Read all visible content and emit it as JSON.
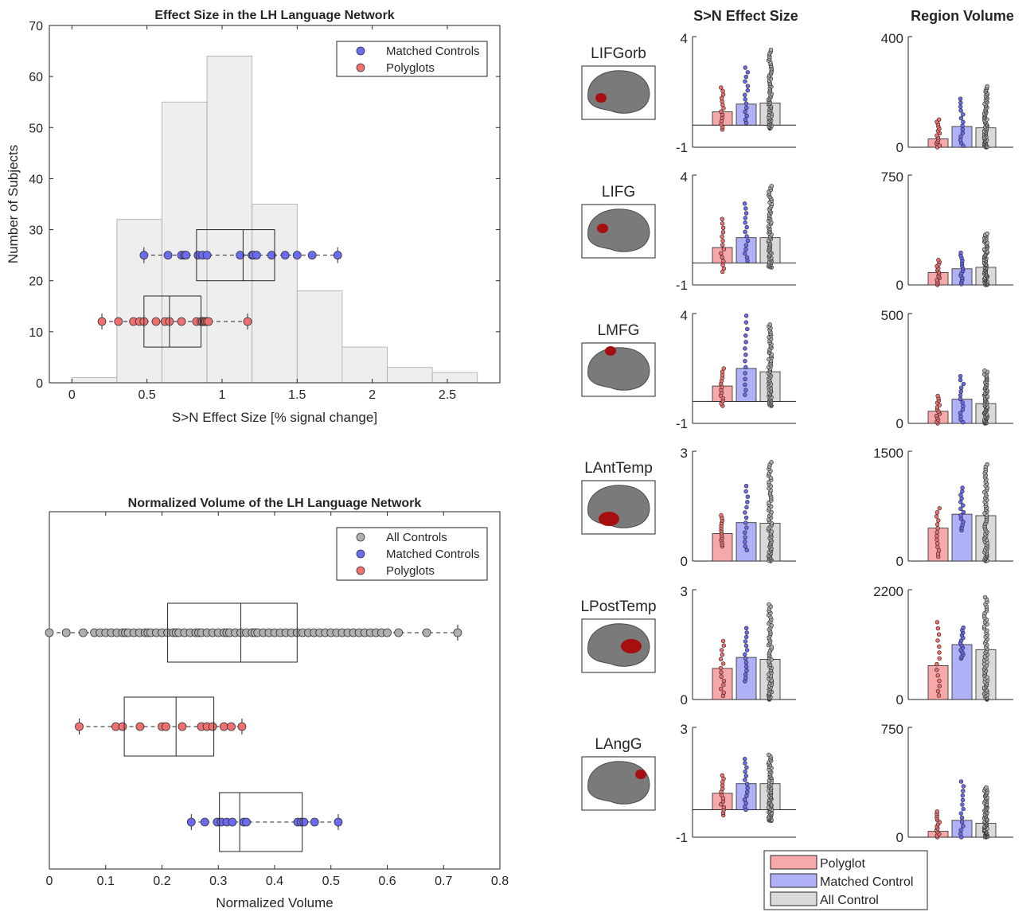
{
  "chart_data": [
    {
      "type": "histogram",
      "title": "Effect Size in the LH Language Network",
      "xlabel": "S>N Effect Size [% signal change]",
      "ylabel": "Number of Subjects",
      "xlim": [
        -0.15,
        2.85
      ],
      "ylim": [
        0,
        70
      ],
      "xticks": [
        0,
        0.5,
        1,
        1.5,
        2,
        2.5
      ],
      "xtick_labels": [
        "0",
        "0.5",
        "1",
        "1.5",
        "2",
        "2.5"
      ],
      "yticks": [
        0,
        10,
        20,
        30,
        40,
        50,
        60,
        70
      ],
      "ytick_labels": [
        "0",
        "10",
        "20",
        "30",
        "40",
        "50",
        "60",
        "70"
      ],
      "legend_position": "top-right",
      "legend": [
        {
          "label": "Matched Controls",
          "color": "#6b6bf0"
        },
        {
          "label": "Polyglots",
          "color": "#f07070"
        }
      ],
      "bins": [
        {
          "x0": 0,
          "x1": 0.3,
          "count": 1
        },
        {
          "x0": 0.3,
          "x1": 0.6,
          "count": 32
        },
        {
          "x0": 0.6,
          "x1": 0.9,
          "count": 55
        },
        {
          "x0": 0.9,
          "x1": 1.2,
          "count": 64
        },
        {
          "x0": 1.2,
          "x1": 1.5,
          "count": 35
        },
        {
          "x0": 1.5,
          "x1": 1.8,
          "count": 18
        },
        {
          "x0": 1.8,
          "x1": 2.1,
          "count": 7
        },
        {
          "x0": 2.1,
          "x1": 2.4,
          "count": 3
        },
        {
          "x0": 2.4,
          "x1": 2.7,
          "count": 2
        }
      ],
      "series": [
        {
          "name": "Matched Controls",
          "color": "#6b6bf0",
          "y": 25,
          "points": [
            0.48,
            0.64,
            0.73,
            0.75,
            0.76,
            0.84,
            0.87,
            0.9,
            1.12,
            1.2,
            1.21,
            1.23,
            1.33,
            1.42,
            1.5,
            1.6,
            1.77
          ],
          "box": {
            "whisker_low": 0.48,
            "q1": 0.83,
            "median": 1.14,
            "q3": 1.35,
            "whisker_high": 1.77
          }
        },
        {
          "name": "Polyglots",
          "color": "#f07070",
          "y": 12,
          "points": [
            0.2,
            0.31,
            0.41,
            0.45,
            0.48,
            0.56,
            0.62,
            0.65,
            0.73,
            0.83,
            0.86,
            0.87,
            0.88,
            0.89,
            0.9,
            0.91,
            1.17
          ],
          "box": {
            "whisker_low": 0.2,
            "q1": 0.48,
            "median": 0.65,
            "q3": 0.86,
            "whisker_high": 1.17
          }
        }
      ]
    },
    {
      "type": "boxplot",
      "title": "Normalized Volume of the LH Language Network",
      "xlabel": "Normalized Volume",
      "xlim": [
        0,
        0.8
      ],
      "xticks": [
        0,
        0.1,
        0.2,
        0.3,
        0.4,
        0.5,
        0.6,
        0.7,
        0.8
      ],
      "xtick_labels": [
        "0",
        "0.1",
        "0.2",
        "0.3",
        "0.4",
        "0.5",
        "0.6",
        "0.7",
        "0.8"
      ],
      "legend_position": "top-right",
      "legend": [
        {
          "label": "All Controls",
          "color": "#b0b0b0"
        },
        {
          "label": "Matched Controls",
          "color": "#6b6bf0"
        },
        {
          "label": "Polyglots",
          "color": "#f07070"
        }
      ],
      "series": [
        {
          "name": "All Controls",
          "color": "#b0b0b0",
          "row": 1,
          "points": [
            0.0,
            0.03,
            0.06,
            0.08,
            0.09,
            0.1,
            0.11,
            0.12,
            0.13,
            0.135,
            0.14,
            0.15,
            0.16,
            0.17,
            0.175,
            0.18,
            0.19,
            0.2,
            0.21,
            0.22,
            0.225,
            0.23,
            0.24,
            0.25,
            0.26,
            0.265,
            0.27,
            0.28,
            0.29,
            0.3,
            0.31,
            0.315,
            0.32,
            0.33,
            0.34,
            0.35,
            0.36,
            0.365,
            0.37,
            0.38,
            0.39,
            0.4,
            0.41,
            0.42,
            0.43,
            0.44,
            0.45,
            0.46,
            0.47,
            0.48,
            0.49,
            0.5,
            0.51,
            0.52,
            0.53,
            0.54,
            0.55,
            0.56,
            0.57,
            0.58,
            0.59,
            0.6,
            0.62,
            0.67,
            0.725
          ],
          "box": {
            "whisker_low": 0.0,
            "q1": 0.21,
            "median": 0.34,
            "q3": 0.44,
            "whisker_high": 0.725
          }
        },
        {
          "name": "Polyglots",
          "color": "#f07070",
          "row": 2,
          "points": [
            0.053,
            0.118,
            0.13,
            0.161,
            0.2,
            0.207,
            0.236,
            0.27,
            0.28,
            0.29,
            0.31,
            0.323,
            0.342
          ],
          "box": {
            "whisker_low": 0.053,
            "q1": 0.133,
            "median": 0.225,
            "q3": 0.292,
            "whisker_high": 0.342
          }
        },
        {
          "name": "Matched Controls",
          "color": "#6b6bf0",
          "row": 3,
          "points": [
            0.252,
            0.276,
            0.298,
            0.305,
            0.315,
            0.325,
            0.345,
            0.35,
            0.441,
            0.447,
            0.452,
            0.471,
            0.513
          ],
          "box": {
            "whisker_low": 0.252,
            "q1": 0.302,
            "median": 0.338,
            "q3": 0.449,
            "whisker_high": 0.513
          }
        }
      ]
    },
    {
      "type": "bar_grid",
      "column_titles": [
        "S>N Effect Size",
        "Region Volume"
      ],
      "groups": [
        "Polyglot",
        "Matched Control",
        "All Control"
      ],
      "group_colors": [
        "#f7a8a8",
        "#b0b0f7",
        "#d9d9d9"
      ],
      "dot_colors": [
        "#f07070",
        "#6b6bf0",
        "#b0b0b0"
      ],
      "legend": [
        {
          "label": "Polyglot",
          "color": "#f7a8a8"
        },
        {
          "label": "Matched Control",
          "color": "#b0b0f7"
        },
        {
          "label": "All Control",
          "color": "#d9d9d9"
        }
      ],
      "rows": [
        {
          "region": "LIFGorb",
          "effect": {
            "ymin": -1,
            "ymax": 4,
            "ytick_labels": [
              "-1",
              "4"
            ],
            "values": [
              0.6,
              0.95,
              1.0
            ],
            "dot_max": [
              1.7,
              2.6,
              3.4
            ],
            "dot_min": [
              -0.2,
              0.1,
              -0.15
            ]
          },
          "volume": {
            "ymin": 0,
            "ymax": 400,
            "ytick_labels": [
              "0",
              "400"
            ],
            "values": [
              30,
              75,
              70
            ],
            "dot_max": [
              100,
              175,
              220
            ],
            "dot_min": [
              0,
              5,
              0
            ]
          }
        },
        {
          "region": "LIFG",
          "effect": {
            "ymin": -1,
            "ymax": 4,
            "ytick_labels": [
              "-1",
              "4"
            ],
            "values": [
              0.7,
              1.15,
              1.15
            ],
            "dot_max": [
              2.0,
              2.7,
              3.5
            ],
            "dot_min": [
              -0.4,
              0.1,
              -0.2
            ]
          },
          "volume": {
            "ymin": 0,
            "ymax": 750,
            "ytick_labels": [
              "0",
              "750"
            ],
            "values": [
              85,
              110,
              120
            ],
            "dot_max": [
              170,
              220,
              350
            ],
            "dot_min": [
              0,
              5,
              0
            ]
          }
        },
        {
          "region": "LMFG",
          "effect": {
            "ymin": -1,
            "ymax": 4,
            "ytick_labels": [
              "-1",
              "4"
            ],
            "values": [
              0.7,
              1.5,
              1.35
            ],
            "dot_max": [
              1.5,
              3.9,
              3.5
            ],
            "dot_min": [
              -0.2,
              0.3,
              -0.2
            ]
          },
          "volume": {
            "ymin": 0,
            "ymax": 500,
            "ytick_labels": [
              "0",
              "500"
            ],
            "values": [
              55,
              110,
              90
            ],
            "dot_max": [
              125,
              215,
              240
            ],
            "dot_min": [
              0,
              5,
              0
            ]
          }
        },
        {
          "region": "LAntTemp",
          "effect": {
            "ymin": 0,
            "ymax": 3,
            "ytick_labels": [
              "0",
              "3"
            ],
            "values": [
              0.75,
              1.05,
              1.03
            ],
            "dot_max": [
              1.25,
              2.05,
              2.7
            ],
            "dot_min": [
              0.4,
              0.3,
              0.0
            ]
          },
          "volume": {
            "ymin": 0,
            "ymax": 1500,
            "ytick_labels": [
              "0",
              "1500"
            ],
            "values": [
              450,
              640,
              620
            ],
            "dot_max": [
              720,
              1000,
              1320
            ],
            "dot_min": [
              60,
              420,
              0
            ]
          }
        },
        {
          "region": "LPostTemp",
          "effect": {
            "ymin": 0,
            "ymax": 3,
            "ytick_labels": [
              "0",
              "3"
            ],
            "values": [
              0.85,
              1.15,
              1.1
            ],
            "dot_max": [
              1.6,
              1.95,
              2.6
            ],
            "dot_min": [
              0.1,
              0.5,
              0.0
            ]
          },
          "volume": {
            "ymin": 0,
            "ymax": 2200,
            "ytick_labels": [
              "0",
              "2200"
            ],
            "values": [
              680,
              1100,
              1000
            ],
            "dot_max": [
              1550,
              1440,
              2050
            ],
            "dot_min": [
              80,
              820,
              0
            ]
          }
        },
        {
          "region": "LAngG",
          "effect": {
            "ymin": -1,
            "ymax": 3,
            "ytick_labels": [
              "-1",
              "3"
            ],
            "values": [
              0.6,
              0.95,
              0.95
            ],
            "dot_max": [
              1.25,
              1.85,
              2.0
            ],
            "dot_min": [
              -0.2,
              0.0,
              -0.4
            ]
          },
          "volume": {
            "ymin": 0,
            "ymax": 750,
            "ytick_labels": [
              "0",
              "750"
            ],
            "values": [
              40,
              115,
              95
            ],
            "dot_max": [
              175,
              380,
              340
            ],
            "dot_min": [
              0,
              0,
              0
            ]
          }
        }
      ]
    }
  ]
}
